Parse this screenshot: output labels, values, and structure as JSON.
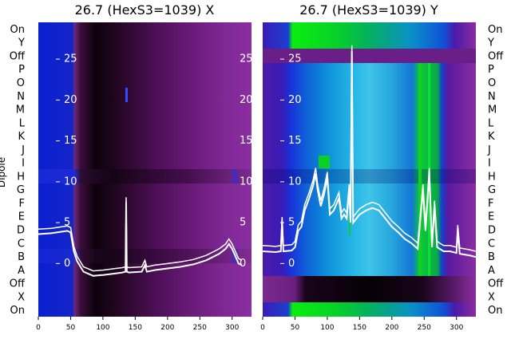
{
  "chart_data": [
    {
      "type": "heatmap",
      "title": "26.7 (HexS3=1039) X",
      "ylabel": "Dipole",
      "xlim": [
        0,
        330
      ],
      "x_ticks": [
        0,
        50,
        100,
        150,
        200,
        250,
        300
      ],
      "row_labels": [
        "On",
        "Y",
        "Off",
        "P",
        "O",
        "N",
        "M",
        "L",
        "K",
        "J",
        "I",
        "H",
        "G",
        "F",
        "E",
        "D",
        "C",
        "B",
        "A",
        "Off",
        "X",
        "On"
      ],
      "inner_ticks": [
        25,
        20,
        15,
        10,
        5,
        0
      ],
      "inner_range": [
        -6.5,
        29.5
      ],
      "trace_points": [
        [
          0,
          3.6
        ],
        [
          20,
          3.7
        ],
        [
          45,
          4.0
        ],
        [
          50,
          3.8
        ],
        [
          55,
          1.5
        ],
        [
          60,
          0.3
        ],
        [
          70,
          -1.0
        ],
        [
          85,
          -1.5
        ],
        [
          100,
          -1.4
        ],
        [
          120,
          -1.2
        ],
        [
          130,
          -1.1
        ],
        [
          135,
          -1.0
        ],
        [
          136,
          7.5
        ],
        [
          137,
          -1.0
        ],
        [
          140,
          -1.1
        ],
        [
          160,
          -1.0
        ],
        [
          165,
          -0.2
        ],
        [
          168,
          -1.0
        ],
        [
          180,
          -0.8
        ],
        [
          200,
          -0.6
        ],
        [
          220,
          -0.4
        ],
        [
          240,
          -0.1
        ],
        [
          260,
          0.4
        ],
        [
          280,
          1.2
        ],
        [
          290,
          1.8
        ],
        [
          295,
          2.4
        ],
        [
          300,
          1.8
        ],
        [
          310,
          0.0
        ],
        [
          315,
          -0.2
        ]
      ],
      "offset_trace": 0.6
    },
    {
      "type": "heatmap",
      "title": "26.7 (HexS3=1039) Y",
      "xlim": [
        0,
        330
      ],
      "x_ticks": [
        0,
        50,
        100,
        150,
        200,
        250,
        300
      ],
      "row_labels": [
        "On",
        "Y",
        "Off",
        "P",
        "O",
        "N",
        "M",
        "L",
        "K",
        "J",
        "I",
        "H",
        "G",
        "F",
        "E",
        "D",
        "C",
        "B",
        "A",
        "Off",
        "X",
        "On"
      ],
      "inner_ticks": [
        25,
        20,
        15,
        10,
        5,
        0
      ],
      "inner_range": [
        -6.5,
        29.5
      ],
      "trace_points": [
        [
          0,
          1.5
        ],
        [
          20,
          1.4
        ],
        [
          28,
          1.5
        ],
        [
          30,
          5.0
        ],
        [
          32,
          1.5
        ],
        [
          45,
          1.6
        ],
        [
          50,
          2.0
        ],
        [
          55,
          4.0
        ],
        [
          60,
          4.5
        ],
        [
          65,
          6.5
        ],
        [
          72,
          8.0
        ],
        [
          78,
          9.5
        ],
        [
          82,
          11.0
        ],
        [
          85,
          9.0
        ],
        [
          90,
          7.0
        ],
        [
          95,
          8.5
        ],
        [
          100,
          10.5
        ],
        [
          104,
          6.0
        ],
        [
          110,
          6.5
        ],
        [
          118,
          8.0
        ],
        [
          122,
          5.5
        ],
        [
          126,
          6.0
        ],
        [
          130,
          5.5
        ],
        [
          134,
          9.0
        ],
        [
          136,
          5.0
        ],
        [
          138,
          26.0
        ],
        [
          140,
          5.0
        ],
        [
          150,
          6.0
        ],
        [
          160,
          6.5
        ],
        [
          170,
          6.8
        ],
        [
          180,
          6.5
        ],
        [
          190,
          5.5
        ],
        [
          200,
          4.5
        ],
        [
          210,
          3.8
        ],
        [
          220,
          3.0
        ],
        [
          230,
          2.5
        ],
        [
          240,
          1.8
        ],
        [
          248,
          9.0
        ],
        [
          252,
          4.0
        ],
        [
          258,
          11.0
        ],
        [
          262,
          2.0
        ],
        [
          266,
          7.0
        ],
        [
          270,
          2.0
        ],
        [
          280,
          1.5
        ],
        [
          290,
          1.5
        ],
        [
          300,
          1.3
        ],
        [
          302,
          4.0
        ],
        [
          305,
          1.2
        ],
        [
          320,
          1.0
        ],
        [
          330,
          0.8
        ]
      ],
      "offset_trace": 0.7
    }
  ]
}
